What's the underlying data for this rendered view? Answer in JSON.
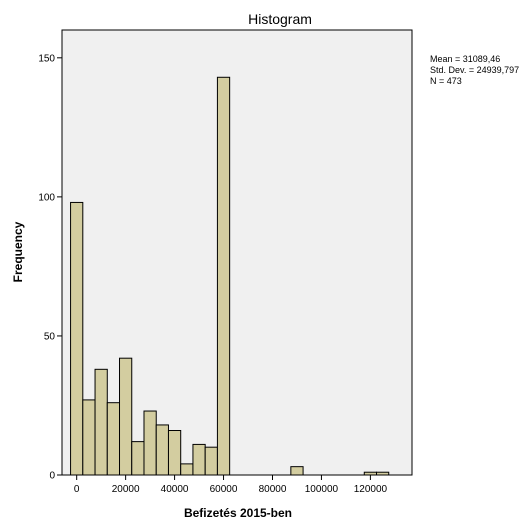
{
  "chart_data": {
    "type": "bar",
    "title": "Histogram",
    "xlabel": "Befizetés 2015-ben",
    "ylabel": "Frequency",
    "bin_width": 5000,
    "bins": [
      {
        "start": -2500,
        "value": 98
      },
      {
        "start": 2500,
        "value": 27
      },
      {
        "start": 7500,
        "value": 38
      },
      {
        "start": 12500,
        "value": 26
      },
      {
        "start": 17500,
        "value": 42
      },
      {
        "start": 22500,
        "value": 12
      },
      {
        "start": 27500,
        "value": 23
      },
      {
        "start": 32500,
        "value": 18
      },
      {
        "start": 37500,
        "value": 16
      },
      {
        "start": 42500,
        "value": 4
      },
      {
        "start": 47500,
        "value": 11
      },
      {
        "start": 52500,
        "value": 10
      },
      {
        "start": 57500,
        "value": 143
      },
      {
        "start": 87500,
        "value": 3
      },
      {
        "start": 117500,
        "value": 1
      },
      {
        "start": 122500,
        "value": 1
      }
    ],
    "xlim": [
      -6000,
      137000
    ],
    "ylim": [
      0,
      160
    ],
    "x_ticks": [
      {
        "value": 0,
        "label": "0"
      },
      {
        "value": 20000,
        "label": "20000"
      },
      {
        "value": 40000,
        "label": "40000"
      },
      {
        "value": 60000,
        "label": "60000"
      },
      {
        "value": 80000,
        "label": "80000"
      },
      {
        "value": 100000,
        "label": "100000"
      },
      {
        "value": 120000,
        "label": "120000"
      }
    ],
    "y_ticks": [
      {
        "value": 0,
        "label": "0"
      },
      {
        "value": 50,
        "label": "50"
      },
      {
        "value": 100,
        "label": "100"
      },
      {
        "value": 150,
        "label": "150"
      }
    ],
    "stats": {
      "mean": "Mean = 31089,46",
      "std_dev": "Std. Dev. = 24939,797",
      "n": "N = 473"
    },
    "grid": false,
    "legend": "right",
    "colors": {
      "plot_background": "#f0f0f0",
      "bar_fill": "#d3cda0",
      "bar_stroke": "#000000"
    }
  }
}
